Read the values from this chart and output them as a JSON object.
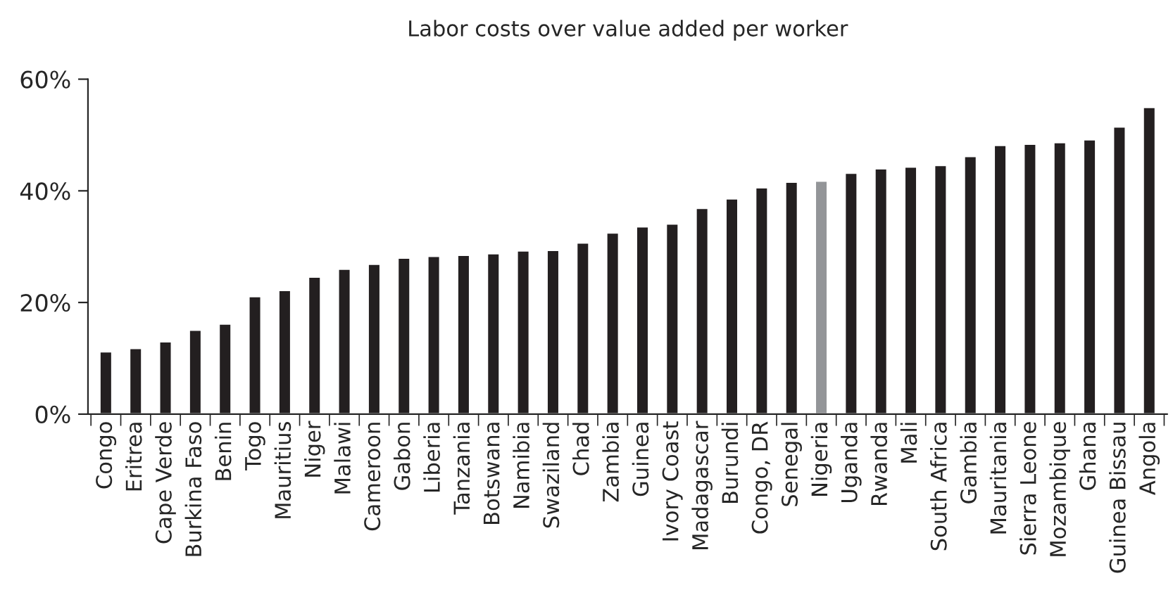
{
  "chart_data": {
    "type": "bar",
    "title": "Labor costs over value added per worker",
    "categories": [
      "Congo",
      "Eritrea",
      "Cape Verde",
      "Burkina Faso",
      "Benin",
      "Togo",
      "Mauritius",
      "Niger",
      "Malawi",
      "Cameroon",
      "Gabon",
      "Liberia",
      "Tanzania",
      "Botswana",
      "Namibia",
      "Swaziland",
      "Chad",
      "Zambia",
      "Guinea",
      "Ivory Coast",
      "Madagascar",
      "Burundi",
      "Congo, DR",
      "Senegal",
      "Nigeria",
      "Uganda",
      "Rwanda",
      "Mali",
      "South Africa",
      "Gambia",
      "Mauritania",
      "Sierra Leone",
      "Mozambique",
      "Ghana",
      "Guinea Bissau",
      "Angola"
    ],
    "values": [
      11.2,
      11.8,
      13,
      15.1,
      16.2,
      21.1,
      22.2,
      24.6,
      26,
      26.9,
      28,
      28.3,
      28.5,
      28.8,
      29.3,
      29.4,
      30.7,
      32.5,
      33.6,
      34.1,
      36.9,
      38.6,
      40.6,
      41.6,
      41.8,
      43.2,
      44,
      44.3,
      44.6,
      46.2,
      48.2,
      48.4,
      48.7,
      49.2,
      51.5,
      55
    ],
    "colors": [
      "#231f20",
      "#231f20",
      "#231f20",
      "#231f20",
      "#231f20",
      "#231f20",
      "#231f20",
      "#231f20",
      "#231f20",
      "#231f20",
      "#231f20",
      "#231f20",
      "#231f20",
      "#231f20",
      "#231f20",
      "#231f20",
      "#231f20",
      "#231f20",
      "#231f20",
      "#231f20",
      "#231f20",
      "#231f20",
      "#231f20",
      "#231f20",
      "#939598",
      "#231f20",
      "#231f20",
      "#231f20",
      "#231f20",
      "#231f20",
      "#231f20",
      "#231f20",
      "#231f20",
      "#231f20",
      "#231f20",
      "#231f20"
    ],
    "ylim": [
      0,
      60
    ],
    "yticks": [
      {
        "value": 0,
        "label": "0%"
      },
      {
        "value": 20,
        "label": "20%"
      },
      {
        "value": 40,
        "label": "40%"
      },
      {
        "value": 60,
        "label": "60%"
      }
    ],
    "grid": false,
    "legend": false
  }
}
